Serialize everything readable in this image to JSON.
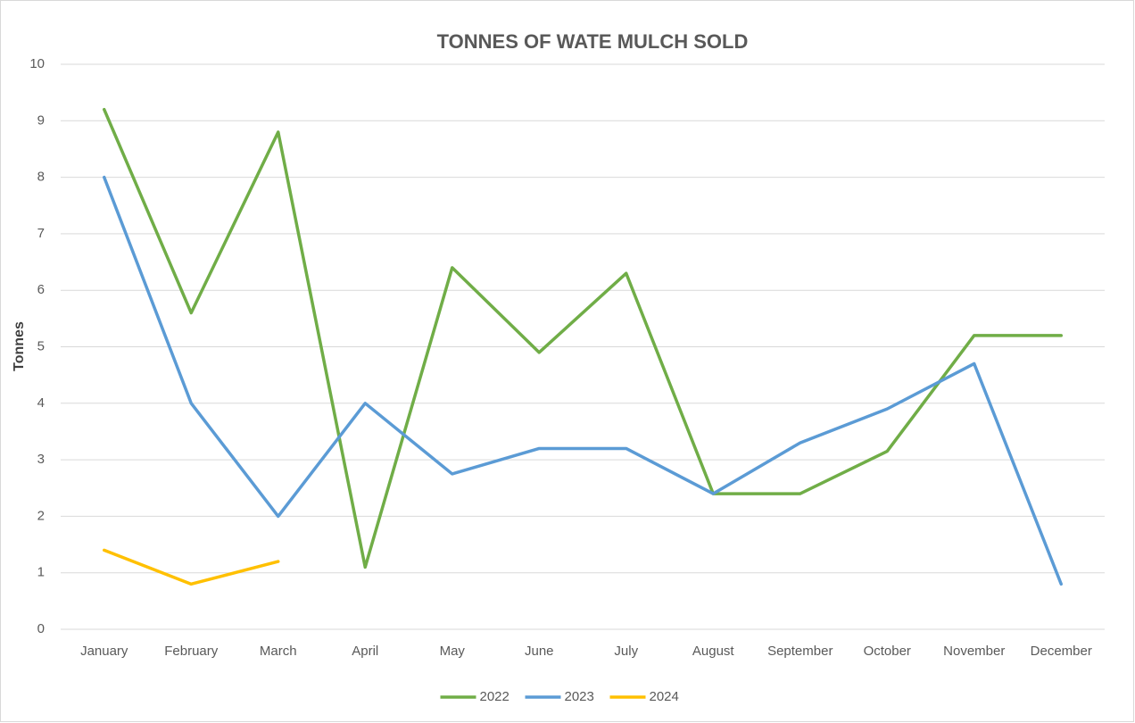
{
  "chart_data": {
    "type": "line",
    "title": "TONNES OF WATE MULCH SOLD",
    "y_label": "Tonnes",
    "categories": [
      "January",
      "February",
      "March",
      "April",
      "May",
      "June",
      "July",
      "August",
      "September",
      "October",
      "November",
      "December"
    ],
    "series": [
      {
        "name": "2022",
        "color": "#70ad47",
        "values": [
          9.2,
          5.6,
          8.8,
          1.1,
          6.4,
          4.9,
          6.3,
          2.4,
          2.4,
          3.15,
          5.2,
          5.2
        ]
      },
      {
        "name": "2023",
        "color": "#5b9bd5",
        "values": [
          8,
          4,
          2,
          4,
          2.75,
          3.2,
          3.2,
          2.4,
          3.3,
          3.9,
          4.7,
          0.8
        ]
      },
      {
        "name": "2024",
        "color": "#ffc000",
        "values": [
          1.4,
          0.8,
          1.2,
          null,
          null,
          null,
          null,
          null,
          null,
          null,
          null,
          null
        ]
      }
    ],
    "ylim": [
      0,
      10
    ],
    "yticks": [
      0,
      1,
      2,
      3,
      4,
      5,
      6,
      7,
      8,
      9,
      10
    ],
    "grid": true,
    "legend": "bottom"
  }
}
